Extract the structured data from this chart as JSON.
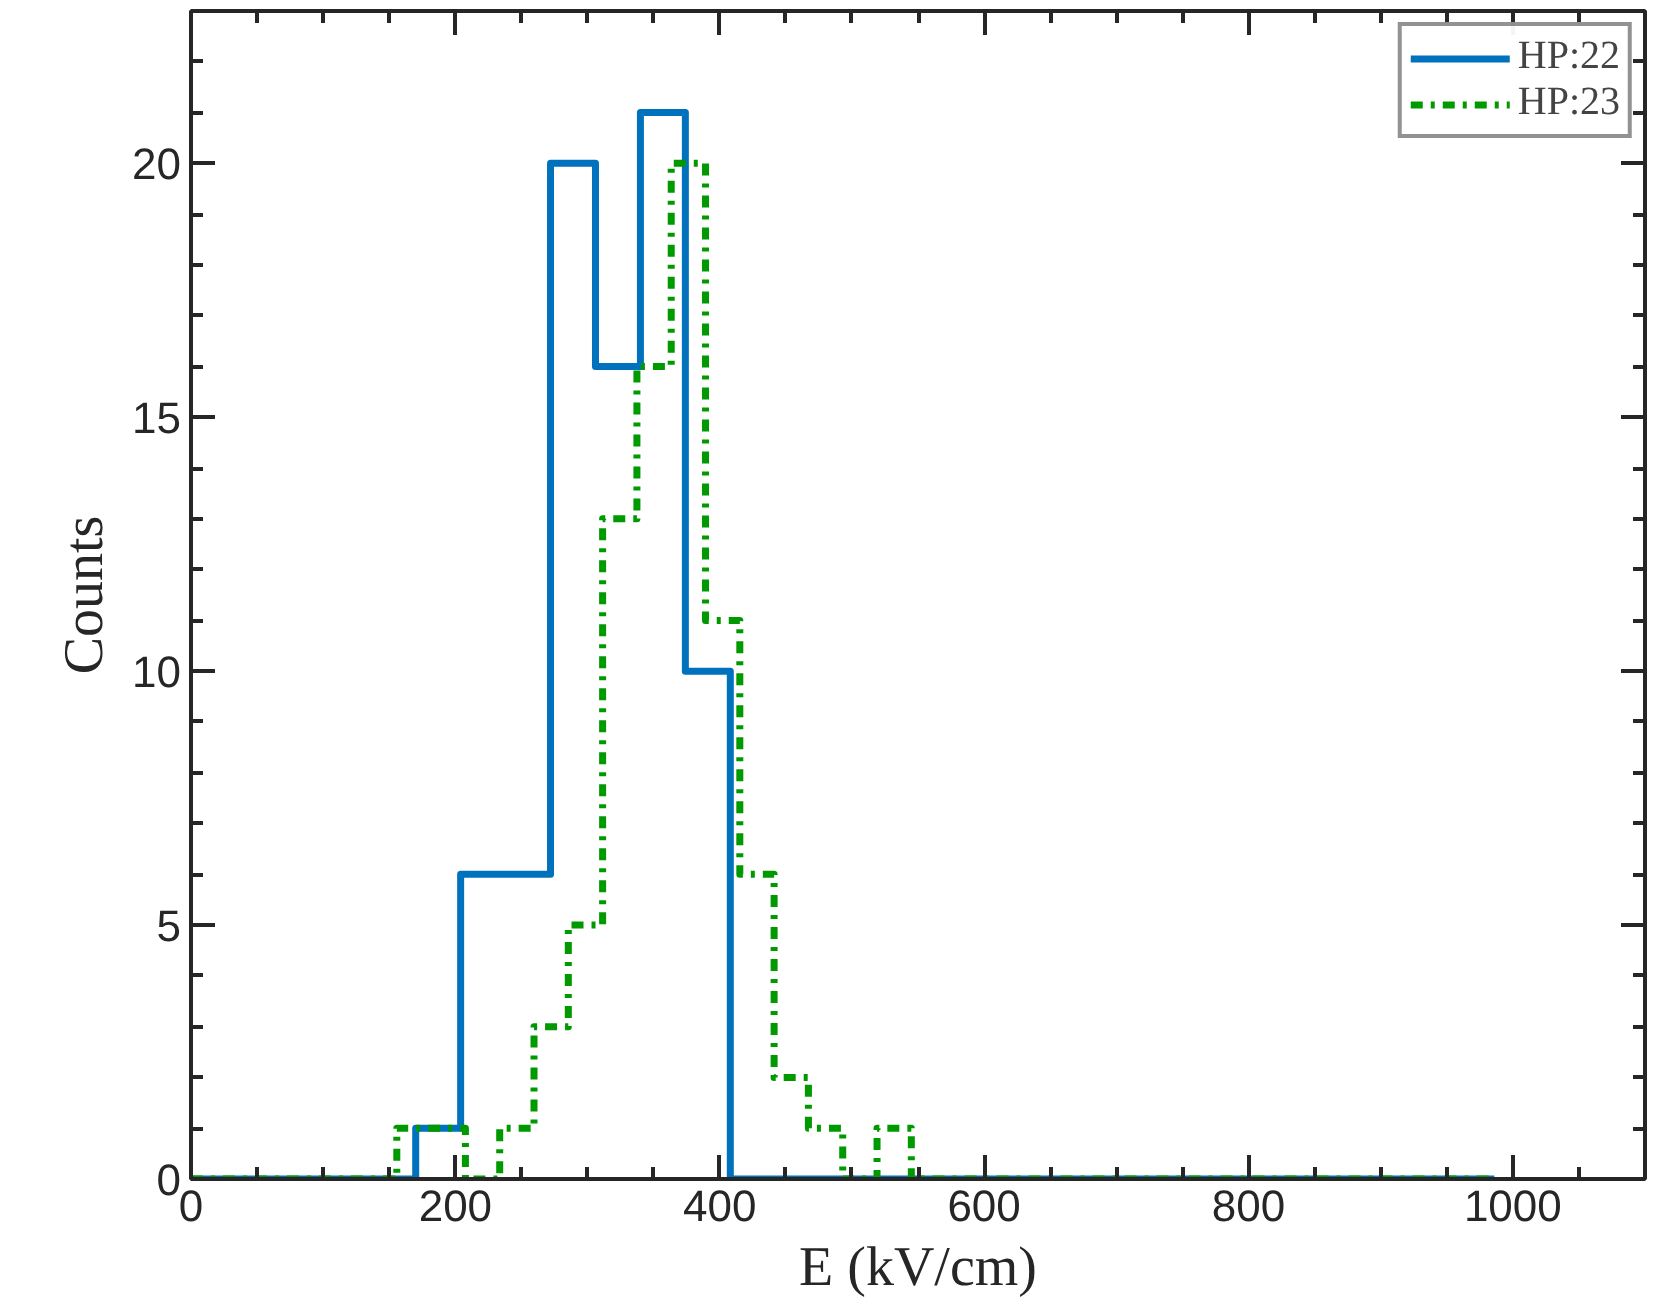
{
  "chart_data": {
    "type": "step",
    "xlabel": "E (kV/cm)",
    "ylabel": "Counts",
    "xlim": [
      0,
      1100
    ],
    "xticks": [
      0,
      200,
      400,
      600,
      800,
      1000
    ],
    "ylim": [
      0,
      23
    ],
    "yticks": [
      0,
      5,
      10,
      15,
      20
    ],
    "grid": false,
    "legend": "top right",
    "series": [
      {
        "name": "HP:22",
        "color": "#0072bd",
        "line_style": "solid",
        "x": [
          0,
          34,
          68,
          102,
          136,
          170,
          204,
          238,
          272,
          306,
          340,
          374,
          408,
          442,
          476,
          510,
          544,
          578,
          612,
          646,
          680,
          714,
          748,
          782,
          816,
          850,
          884,
          918,
          952,
          986
        ],
        "values": [
          0,
          0,
          0,
          0,
          0,
          1,
          6,
          6,
          20,
          16,
          21,
          10,
          0,
          0,
          0,
          0,
          0,
          0,
          0,
          0,
          0,
          0,
          0,
          0,
          0,
          0,
          0,
          0,
          0,
          0
        ]
      },
      {
        "name": "HP:23",
        "color": "#009900",
        "line_style": "dashed",
        "x": [
          0,
          25.95,
          51.9,
          77.85,
          103.8,
          129.75,
          155.7,
          181.65,
          207.6,
          233.55,
          259.5,
          285.45,
          311.4,
          337.35,
          363.3,
          389.25,
          415.2,
          441.15,
          467.1,
          493.05,
          519,
          544.95,
          570.9,
          596.85,
          622.8,
          648.75,
          674.7,
          700.65,
          726.6,
          752.55,
          778.5,
          804.45,
          830.4,
          856.35,
          882.3,
          908.25,
          934.2,
          960.15,
          986.1
        ],
        "values": [
          0,
          0,
          0,
          0,
          0,
          0,
          1,
          1,
          0,
          1,
          3,
          5,
          13,
          16,
          20,
          11,
          6,
          2,
          1,
          0,
          1,
          0,
          0,
          0,
          0,
          0,
          0,
          0,
          0,
          0,
          0,
          0,
          0,
          0,
          0,
          0,
          0,
          0,
          0
        ]
      }
    ]
  }
}
